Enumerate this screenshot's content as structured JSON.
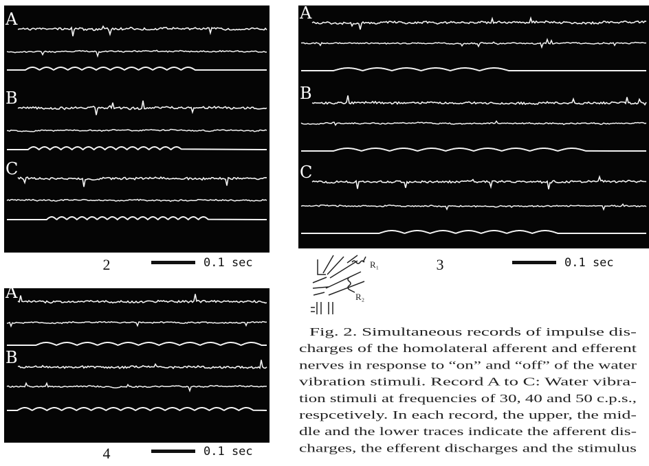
{
  "figures": [
    {
      "number": "2",
      "scale_label": "0.1 sec",
      "records": [
        "A",
        "B",
        "C"
      ]
    },
    {
      "number": "3",
      "scale_label": "0.1 sec",
      "records": [
        "A",
        "B",
        "C"
      ]
    },
    {
      "number": "4",
      "scale_label": "0.1 sec",
      "records": [
        "A",
        "B"
      ]
    }
  ],
  "diagram": {
    "labels": [
      "R₁",
      "R₂"
    ]
  },
  "caption": {
    "lines": [
      "Fig. 2.  Simultaneous records of impulse dis-",
      "charges of the homolateral afferent and efferent",
      "nerves in response to “on” and “off” of the water",
      "vibration stimuli.  Record A to C: Water vibra-",
      "tion stimuli at frequencies of 30, 40 and 50 c.p.s.,",
      "respcetively.  In each record, the upper, the mid-",
      "dle and the lower traces indicate the afferent dis-",
      "charges, the efferent discharges and the stimulus"
    ]
  }
}
